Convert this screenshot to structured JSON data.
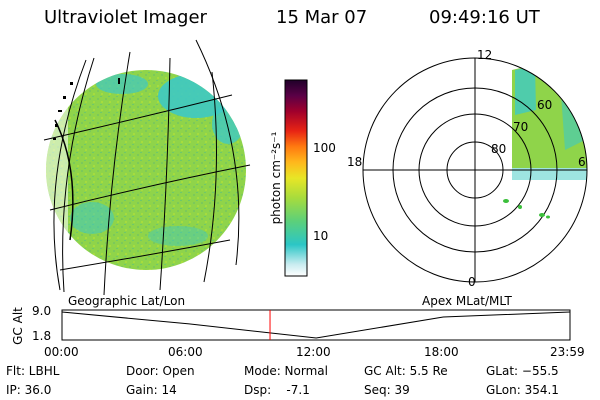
{
  "header": {
    "title": "Ultraviolet Imager",
    "date": "15 Mar 07",
    "time": "09:49:16 UT"
  },
  "colorbar": {
    "label": "photon cm⁻²s⁻¹",
    "ticks": [
      "100",
      "10"
    ]
  },
  "panels": {
    "left_label": "Geographic Lat/Lon",
    "right_label": "Apex MLat/MLT"
  },
  "polar": {
    "mlt_labels": [
      "12",
      "18",
      "6",
      "0"
    ],
    "mlat_labels": [
      "60",
      "70",
      "80"
    ]
  },
  "timeline": {
    "ylabel": "GC Alt",
    "ytop": "9.0",
    "ybottom": "1.8",
    "xticks": [
      "00:00",
      "06:00",
      "12:00",
      "18:00",
      "23:59"
    ]
  },
  "info": {
    "flt": "Flt: LBHL",
    "ip": "IP: 36.0",
    "door": "Door: Open",
    "gain": "Gain: 14",
    "mode": "Mode: Normal",
    "dsp": "Dsp:    -7.1",
    "gcalt": "GC Alt: 5.5 Re",
    "seq": "Seq: 39",
    "glat": "GLat: −55.5",
    "glon": "GLon: 354.1"
  },
  "colors": {
    "image_green": "#8fd44a",
    "image_cyan": "#3ec9c3",
    "marker": "#ff0000"
  },
  "chart_data": {
    "type": "line",
    "title": "",
    "xlabel": "",
    "ylabel": "GC Alt",
    "x": [
      "00:00",
      "06:00",
      "12:00",
      "18:00",
      "23:59"
    ],
    "series": [
      {
        "values": [
          9.0,
          5.7,
          1.8,
          7.6,
          9.0
        ]
      }
    ],
    "ylim": [
      1.8,
      9.0
    ],
    "current_time": "09:49:16",
    "colorbar_scale": "log",
    "colorbar_range": [
      2,
      1000
    ],
    "colorbar_ticks": [
      10,
      100
    ]
  }
}
